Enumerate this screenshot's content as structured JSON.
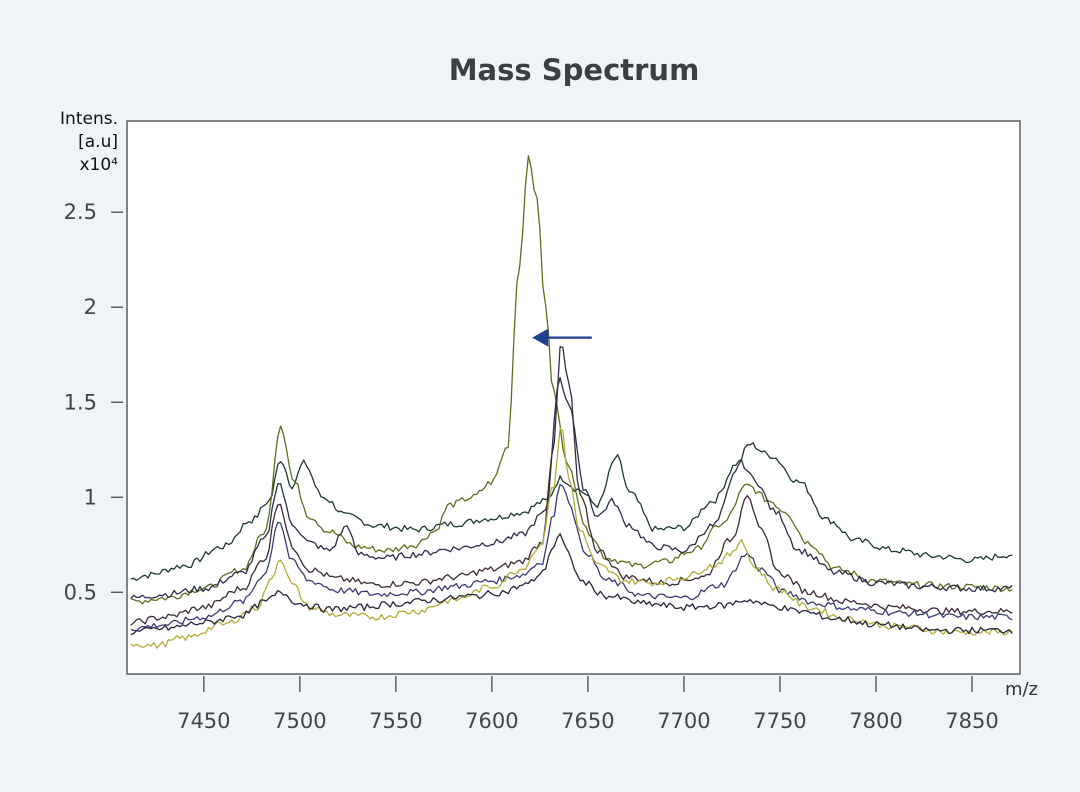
{
  "chart_data": {
    "type": "line",
    "title": "Mass Spectrum",
    "ylabel_lines": [
      "Intens.",
      "[a.u]",
      "x10⁴"
    ],
    "xlabel": "m/z",
    "xlim": [
      7410,
      7875
    ],
    "ylim": [
      0.07,
      2.98
    ],
    "x_ticks": [
      7450,
      7500,
      7550,
      7600,
      7650,
      7700,
      7750,
      7800,
      7850
    ],
    "x_tick_labels": [
      "7450",
      "7500",
      "7550",
      "7600",
      "7650",
      "7700",
      "7750",
      "7800",
      "7850"
    ],
    "y_ticks": [
      0.5,
      1,
      1.5,
      2,
      2.5
    ],
    "y_tick_labels": [
      "0.5",
      "1",
      "1.5",
      "2",
      "2.5"
    ],
    "grid": false,
    "annotation": {
      "type": "arrow",
      "pointing_to": "peak at m/z ~7619",
      "x_tail": 7652,
      "x_head": 7621,
      "y": 1.84,
      "color": "#1f3f8f"
    },
    "series": [
      {
        "color": "#1d3a2e",
        "points": [
          [
            7412,
            0.57
          ],
          [
            7420,
            0.59
          ],
          [
            7440,
            0.64
          ],
          [
            7460,
            0.74
          ],
          [
            7475,
            0.88
          ],
          [
            7484,
            0.98
          ],
          [
            7490,
            1.2
          ],
          [
            7496,
            1.06
          ],
          [
            7502,
            1.18
          ],
          [
            7512,
            1.0
          ],
          [
            7525,
            0.9
          ],
          [
            7540,
            0.85
          ],
          [
            7560,
            0.83
          ],
          [
            7580,
            0.86
          ],
          [
            7600,
            0.89
          ],
          [
            7615,
            0.92
          ],
          [
            7628,
            0.98
          ],
          [
            7636,
            1.1
          ],
          [
            7645,
            1.04
          ],
          [
            7655,
            0.96
          ],
          [
            7665,
            1.21
          ],
          [
            7672,
            1.02
          ],
          [
            7685,
            0.83
          ],
          [
            7700,
            0.84
          ],
          [
            7715,
            0.98
          ],
          [
            7728,
            1.18
          ],
          [
            7734,
            1.28
          ],
          [
            7745,
            1.22
          ],
          [
            7760,
            1.08
          ],
          [
            7775,
            0.88
          ],
          [
            7790,
            0.77
          ],
          [
            7810,
            0.72
          ],
          [
            7830,
            0.69
          ],
          [
            7850,
            0.67
          ],
          [
            7872,
            0.7
          ]
        ]
      },
      {
        "color": "#5f6e1c",
        "points": [
          [
            7412,
            0.45
          ],
          [
            7430,
            0.47
          ],
          [
            7450,
            0.52
          ],
          [
            7470,
            0.62
          ],
          [
            7482,
            0.82
          ],
          [
            7490,
            1.38
          ],
          [
            7497,
            1.08
          ],
          [
            7505,
            0.9
          ],
          [
            7515,
            0.82
          ],
          [
            7530,
            0.74
          ],
          [
            7545,
            0.72
          ],
          [
            7560,
            0.75
          ],
          [
            7570,
            0.82
          ],
          [
            7578,
            0.96
          ],
          [
            7590,
            1.0
          ],
          [
            7600,
            1.08
          ],
          [
            7608,
            1.26
          ],
          [
            7614,
            2.2
          ],
          [
            7619,
            2.78
          ],
          [
            7623,
            2.6
          ],
          [
            7628,
            2.0
          ],
          [
            7632,
            1.55
          ],
          [
            7640,
            1.15
          ],
          [
            7650,
            0.82
          ],
          [
            7660,
            0.68
          ],
          [
            7675,
            0.64
          ],
          [
            7690,
            0.66
          ],
          [
            7705,
            0.72
          ],
          [
            7720,
            0.86
          ],
          [
            7733,
            1.06
          ],
          [
            7745,
            0.98
          ],
          [
            7752,
            0.93
          ],
          [
            7765,
            0.76
          ],
          [
            7780,
            0.62
          ],
          [
            7800,
            0.56
          ],
          [
            7820,
            0.54
          ],
          [
            7845,
            0.53
          ],
          [
            7872,
            0.52
          ]
        ]
      },
      {
        "color": "#2a2f4a",
        "points": [
          [
            7412,
            0.47
          ],
          [
            7430,
            0.49
          ],
          [
            7450,
            0.52
          ],
          [
            7470,
            0.6
          ],
          [
            7482,
            0.78
          ],
          [
            7489,
            1.08
          ],
          [
            7496,
            0.86
          ],
          [
            7505,
            0.76
          ],
          [
            7515,
            0.72
          ],
          [
            7525,
            0.85
          ],
          [
            7530,
            0.7
          ],
          [
            7545,
            0.68
          ],
          [
            7560,
            0.7
          ],
          [
            7580,
            0.73
          ],
          [
            7600,
            0.76
          ],
          [
            7615,
            0.8
          ],
          [
            7628,
            0.92
          ],
          [
            7635,
            1.62
          ],
          [
            7640,
            1.5
          ],
          [
            7648,
            1.05
          ],
          [
            7655,
            0.9
          ],
          [
            7663,
            0.98
          ],
          [
            7670,
            0.86
          ],
          [
            7685,
            0.74
          ],
          [
            7700,
            0.72
          ],
          [
            7715,
            0.85
          ],
          [
            7730,
            1.18
          ],
          [
            7736,
            1.1
          ],
          [
            7748,
            0.92
          ],
          [
            7760,
            0.72
          ],
          [
            7780,
            0.6
          ],
          [
            7800,
            0.55
          ],
          [
            7825,
            0.53
          ],
          [
            7850,
            0.52
          ],
          [
            7872,
            0.52
          ]
        ]
      },
      {
        "color": "#3d2a3a",
        "points": [
          [
            7412,
            0.34
          ],
          [
            7430,
            0.37
          ],
          [
            7450,
            0.42
          ],
          [
            7470,
            0.52
          ],
          [
            7482,
            0.68
          ],
          [
            7489,
            0.98
          ],
          [
            7496,
            0.74
          ],
          [
            7505,
            0.62
          ],
          [
            7520,
            0.57
          ],
          [
            7540,
            0.54
          ],
          [
            7560,
            0.55
          ],
          [
            7580,
            0.58
          ],
          [
            7600,
            0.62
          ],
          [
            7615,
            0.66
          ],
          [
            7626,
            0.76
          ],
          [
            7632,
            1.25
          ],
          [
            7636,
            1.81
          ],
          [
            7640,
            1.6
          ],
          [
            7646,
            1.0
          ],
          [
            7655,
            0.72
          ],
          [
            7670,
            0.58
          ],
          [
            7690,
            0.55
          ],
          [
            7710,
            0.58
          ],
          [
            7725,
            0.78
          ],
          [
            7733,
            1.02
          ],
          [
            7740,
            0.82
          ],
          [
            7750,
            0.6
          ],
          [
            7765,
            0.5
          ],
          [
            7785,
            0.45
          ],
          [
            7810,
            0.42
          ],
          [
            7840,
            0.4
          ],
          [
            7872,
            0.4
          ]
        ]
      },
      {
        "color": "#3a3a78",
        "points": [
          [
            7412,
            0.31
          ],
          [
            7430,
            0.33
          ],
          [
            7450,
            0.37
          ],
          [
            7470,
            0.45
          ],
          [
            7482,
            0.6
          ],
          [
            7489,
            0.88
          ],
          [
            7496,
            0.66
          ],
          [
            7505,
            0.56
          ],
          [
            7520,
            0.51
          ],
          [
            7540,
            0.49
          ],
          [
            7560,
            0.5
          ],
          [
            7580,
            0.53
          ],
          [
            7600,
            0.56
          ],
          [
            7615,
            0.59
          ],
          [
            7626,
            0.66
          ],
          [
            7632,
            0.9
          ],
          [
            7636,
            1.09
          ],
          [
            7640,
            0.98
          ],
          [
            7648,
            0.72
          ],
          [
            7660,
            0.56
          ],
          [
            7680,
            0.48
          ],
          [
            7700,
            0.47
          ],
          [
            7720,
            0.54
          ],
          [
            7733,
            0.7
          ],
          [
            7740,
            0.62
          ],
          [
            7752,
            0.5
          ],
          [
            7770,
            0.44
          ],
          [
            7790,
            0.41
          ],
          [
            7815,
            0.39
          ],
          [
            7845,
            0.37
          ],
          [
            7872,
            0.37
          ]
        ]
      },
      {
        "color": "#b3ac36",
        "points": [
          [
            7412,
            0.23
          ],
          [
            7425,
            0.22
          ],
          [
            7440,
            0.26
          ],
          [
            7460,
            0.33
          ],
          [
            7478,
            0.42
          ],
          [
            7484,
            0.55
          ],
          [
            7490,
            0.68
          ],
          [
            7496,
            0.54
          ],
          [
            7505,
            0.42
          ],
          [
            7520,
            0.38
          ],
          [
            7540,
            0.37
          ],
          [
            7560,
            0.4
          ],
          [
            7580,
            0.46
          ],
          [
            7600,
            0.53
          ],
          [
            7615,
            0.62
          ],
          [
            7625,
            0.74
          ],
          [
            7632,
            1.05
          ],
          [
            7636,
            1.38
          ],
          [
            7640,
            1.1
          ],
          [
            7646,
            0.82
          ],
          [
            7655,
            0.64
          ],
          [
            7670,
            0.56
          ],
          [
            7685,
            0.55
          ],
          [
            7700,
            0.58
          ],
          [
            7715,
            0.64
          ],
          [
            7725,
            0.7
          ],
          [
            7730,
            0.78
          ],
          [
            7736,
            0.64
          ],
          [
            7748,
            0.52
          ],
          [
            7765,
            0.42
          ],
          [
            7785,
            0.36
          ],
          [
            7810,
            0.32
          ],
          [
            7840,
            0.29
          ],
          [
            7872,
            0.29
          ]
        ]
      },
      {
        "color": "#26263a",
        "points": [
          [
            7412,
            0.29
          ],
          [
            7430,
            0.31
          ],
          [
            7450,
            0.34
          ],
          [
            7470,
            0.38
          ],
          [
            7482,
            0.45
          ],
          [
            7490,
            0.5
          ],
          [
            7500,
            0.44
          ],
          [
            7515,
            0.41
          ],
          [
            7530,
            0.42
          ],
          [
            7550,
            0.44
          ],
          [
            7570,
            0.46
          ],
          [
            7590,
            0.48
          ],
          [
            7605,
            0.5
          ],
          [
            7618,
            0.54
          ],
          [
            7626,
            0.6
          ],
          [
            7632,
            0.74
          ],
          [
            7635,
            0.8
          ],
          [
            7640,
            0.7
          ],
          [
            7646,
            0.56
          ],
          [
            7660,
            0.48
          ],
          [
            7680,
            0.44
          ],
          [
            7700,
            0.42
          ],
          [
            7720,
            0.43
          ],
          [
            7733,
            0.46
          ],
          [
            7745,
            0.43
          ],
          [
            7760,
            0.4
          ],
          [
            7780,
            0.36
          ],
          [
            7800,
            0.33
          ],
          [
            7830,
            0.3
          ],
          [
            7872,
            0.3
          ]
        ]
      }
    ]
  }
}
